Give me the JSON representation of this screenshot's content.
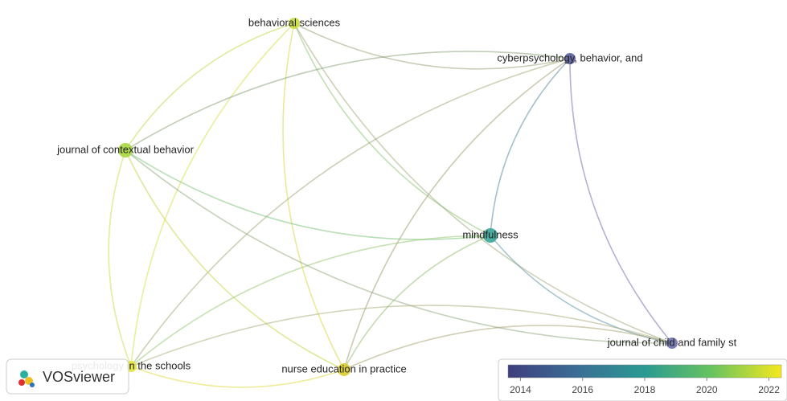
{
  "nodes": [
    {
      "label": "behavioral sciences",
      "color": "#c9dc3a"
    },
    {
      "label": "cyberpsychology, behavior, and",
      "color": "#5b5f9f"
    },
    {
      "label": "journal of contextual behavior",
      "color": "#a6d63f"
    },
    {
      "label": "mindfulness",
      "color": "#3aa597"
    },
    {
      "label": "journal of child and family st",
      "color": "#6c70ad"
    },
    {
      "label": "psychology in the schools",
      "color": "#e3e33c"
    },
    {
      "label": "nurse education in practice",
      "color": "#dccd2c"
    }
  ],
  "logo": "VOSviewer",
  "colorbar": {
    "lim": [
      2013.6,
      2022.4
    ],
    "ticks": [
      2014,
      2016,
      2018,
      2020,
      2022
    ]
  }
}
